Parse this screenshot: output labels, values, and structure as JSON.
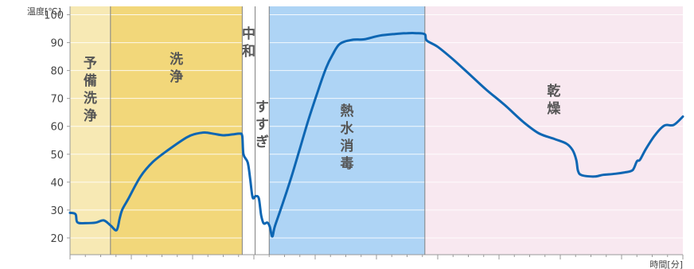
{
  "chart_data": {
    "type": "line",
    "ylabel": "温度[℃]",
    "xlabel": "時間[分]",
    "ylim": [
      14,
      103
    ],
    "yticks": [
      20,
      30,
      40,
      50,
      60,
      70,
      80,
      90,
      100
    ],
    "xlim": [
      0,
      100
    ],
    "x_ticks_labeled": false,
    "grid": "horizontal",
    "phases": [
      {
        "label": "予備洗浄",
        "start": 0.0,
        "end": 6.6,
        "color": "#f7e9b4",
        "label_orientation": "vertical"
      },
      {
        "label": "洗浄",
        "start": 6.6,
        "end": 28.1,
        "color": "#f2d77a",
        "label_orientation": "vertical"
      },
      {
        "label": "中和",
        "start": 28.1,
        "end": 30.2,
        "color": "#ffffff",
        "label_orientation": "vertical"
      },
      {
        "label": "すすぎ",
        "start": 30.2,
        "end": 32.5,
        "color": "#ffffff",
        "label_orientation": "vertical"
      },
      {
        "label": "熱水消毒",
        "start": 32.5,
        "end": 57.9,
        "color": "#aed4f5",
        "label_orientation": "vertical"
      },
      {
        "label": "乾燥",
        "start": 57.9,
        "end": 100.0,
        "color": "#f8e8f0",
        "label_orientation": "vertical"
      }
    ],
    "series": [
      {
        "color": "#0d66b3",
        "points": [
          [
            0.0,
            29
          ],
          [
            0.9,
            28.5
          ],
          [
            1.2,
            25.6
          ],
          [
            2.5,
            25.3
          ],
          [
            4.2,
            25.5
          ],
          [
            5.5,
            26.3
          ],
          [
            6.6,
            24.5
          ],
          [
            7.6,
            22.8
          ],
          [
            8.1,
            27
          ],
          [
            8.5,
            30
          ],
          [
            9.5,
            34
          ],
          [
            11.5,
            42
          ],
          [
            13.5,
            47.2
          ],
          [
            16.0,
            51.5
          ],
          [
            19.0,
            56
          ],
          [
            20.5,
            57.3
          ],
          [
            22.0,
            57.8
          ],
          [
            23.5,
            57.3
          ],
          [
            25.0,
            56.8
          ],
          [
            26.5,
            57.1
          ],
          [
            27.7,
            57.4
          ],
          [
            28.1,
            56.5
          ],
          [
            28.3,
            50
          ],
          [
            29.0,
            47
          ],
          [
            29.4,
            41
          ],
          [
            29.8,
            34.5
          ],
          [
            30.3,
            35
          ],
          [
            30.8,
            34.2
          ],
          [
            31.2,
            28
          ],
          [
            31.6,
            25.2
          ],
          [
            32.2,
            25.5
          ],
          [
            32.6,
            24
          ],
          [
            33.0,
            20.5
          ],
          [
            33.4,
            24
          ],
          [
            34.5,
            31
          ],
          [
            36.0,
            41
          ],
          [
            37.5,
            52
          ],
          [
            39.0,
            63
          ],
          [
            40.5,
            73
          ],
          [
            41.8,
            81
          ],
          [
            42.8,
            85.5
          ],
          [
            44.0,
            89.5
          ],
          [
            46.0,
            91
          ],
          [
            48.0,
            91.2
          ],
          [
            50.5,
            92.5
          ],
          [
            53.0,
            93.1
          ],
          [
            55.0,
            93.4
          ],
          [
            56.5,
            93.4
          ],
          [
            57.9,
            93
          ],
          [
            58.2,
            90.8
          ],
          [
            60.0,
            88.5
          ],
          [
            62.5,
            84
          ],
          [
            65.5,
            78
          ],
          [
            68.0,
            73
          ],
          [
            71.0,
            67.5
          ],
          [
            74.0,
            61.5
          ],
          [
            76.5,
            57.5
          ],
          [
            79.0,
            55.5
          ],
          [
            81.0,
            53.8
          ],
          [
            82.0,
            51.5
          ],
          [
            82.6,
            48
          ],
          [
            82.9,
            44
          ],
          [
            83.5,
            42.5
          ],
          [
            85.5,
            42
          ],
          [
            87.0,
            42.6
          ],
          [
            89.0,
            43
          ],
          [
            90.5,
            43.5
          ],
          [
            91.8,
            44.3
          ],
          [
            92.5,
            47.5
          ],
          [
            93.0,
            48
          ],
          [
            94.0,
            52
          ],
          [
            95.5,
            57
          ],
          [
            97.0,
            60.3
          ],
          [
            98.5,
            60.5
          ],
          [
            100.0,
            63.5
          ]
        ]
      }
    ]
  }
}
